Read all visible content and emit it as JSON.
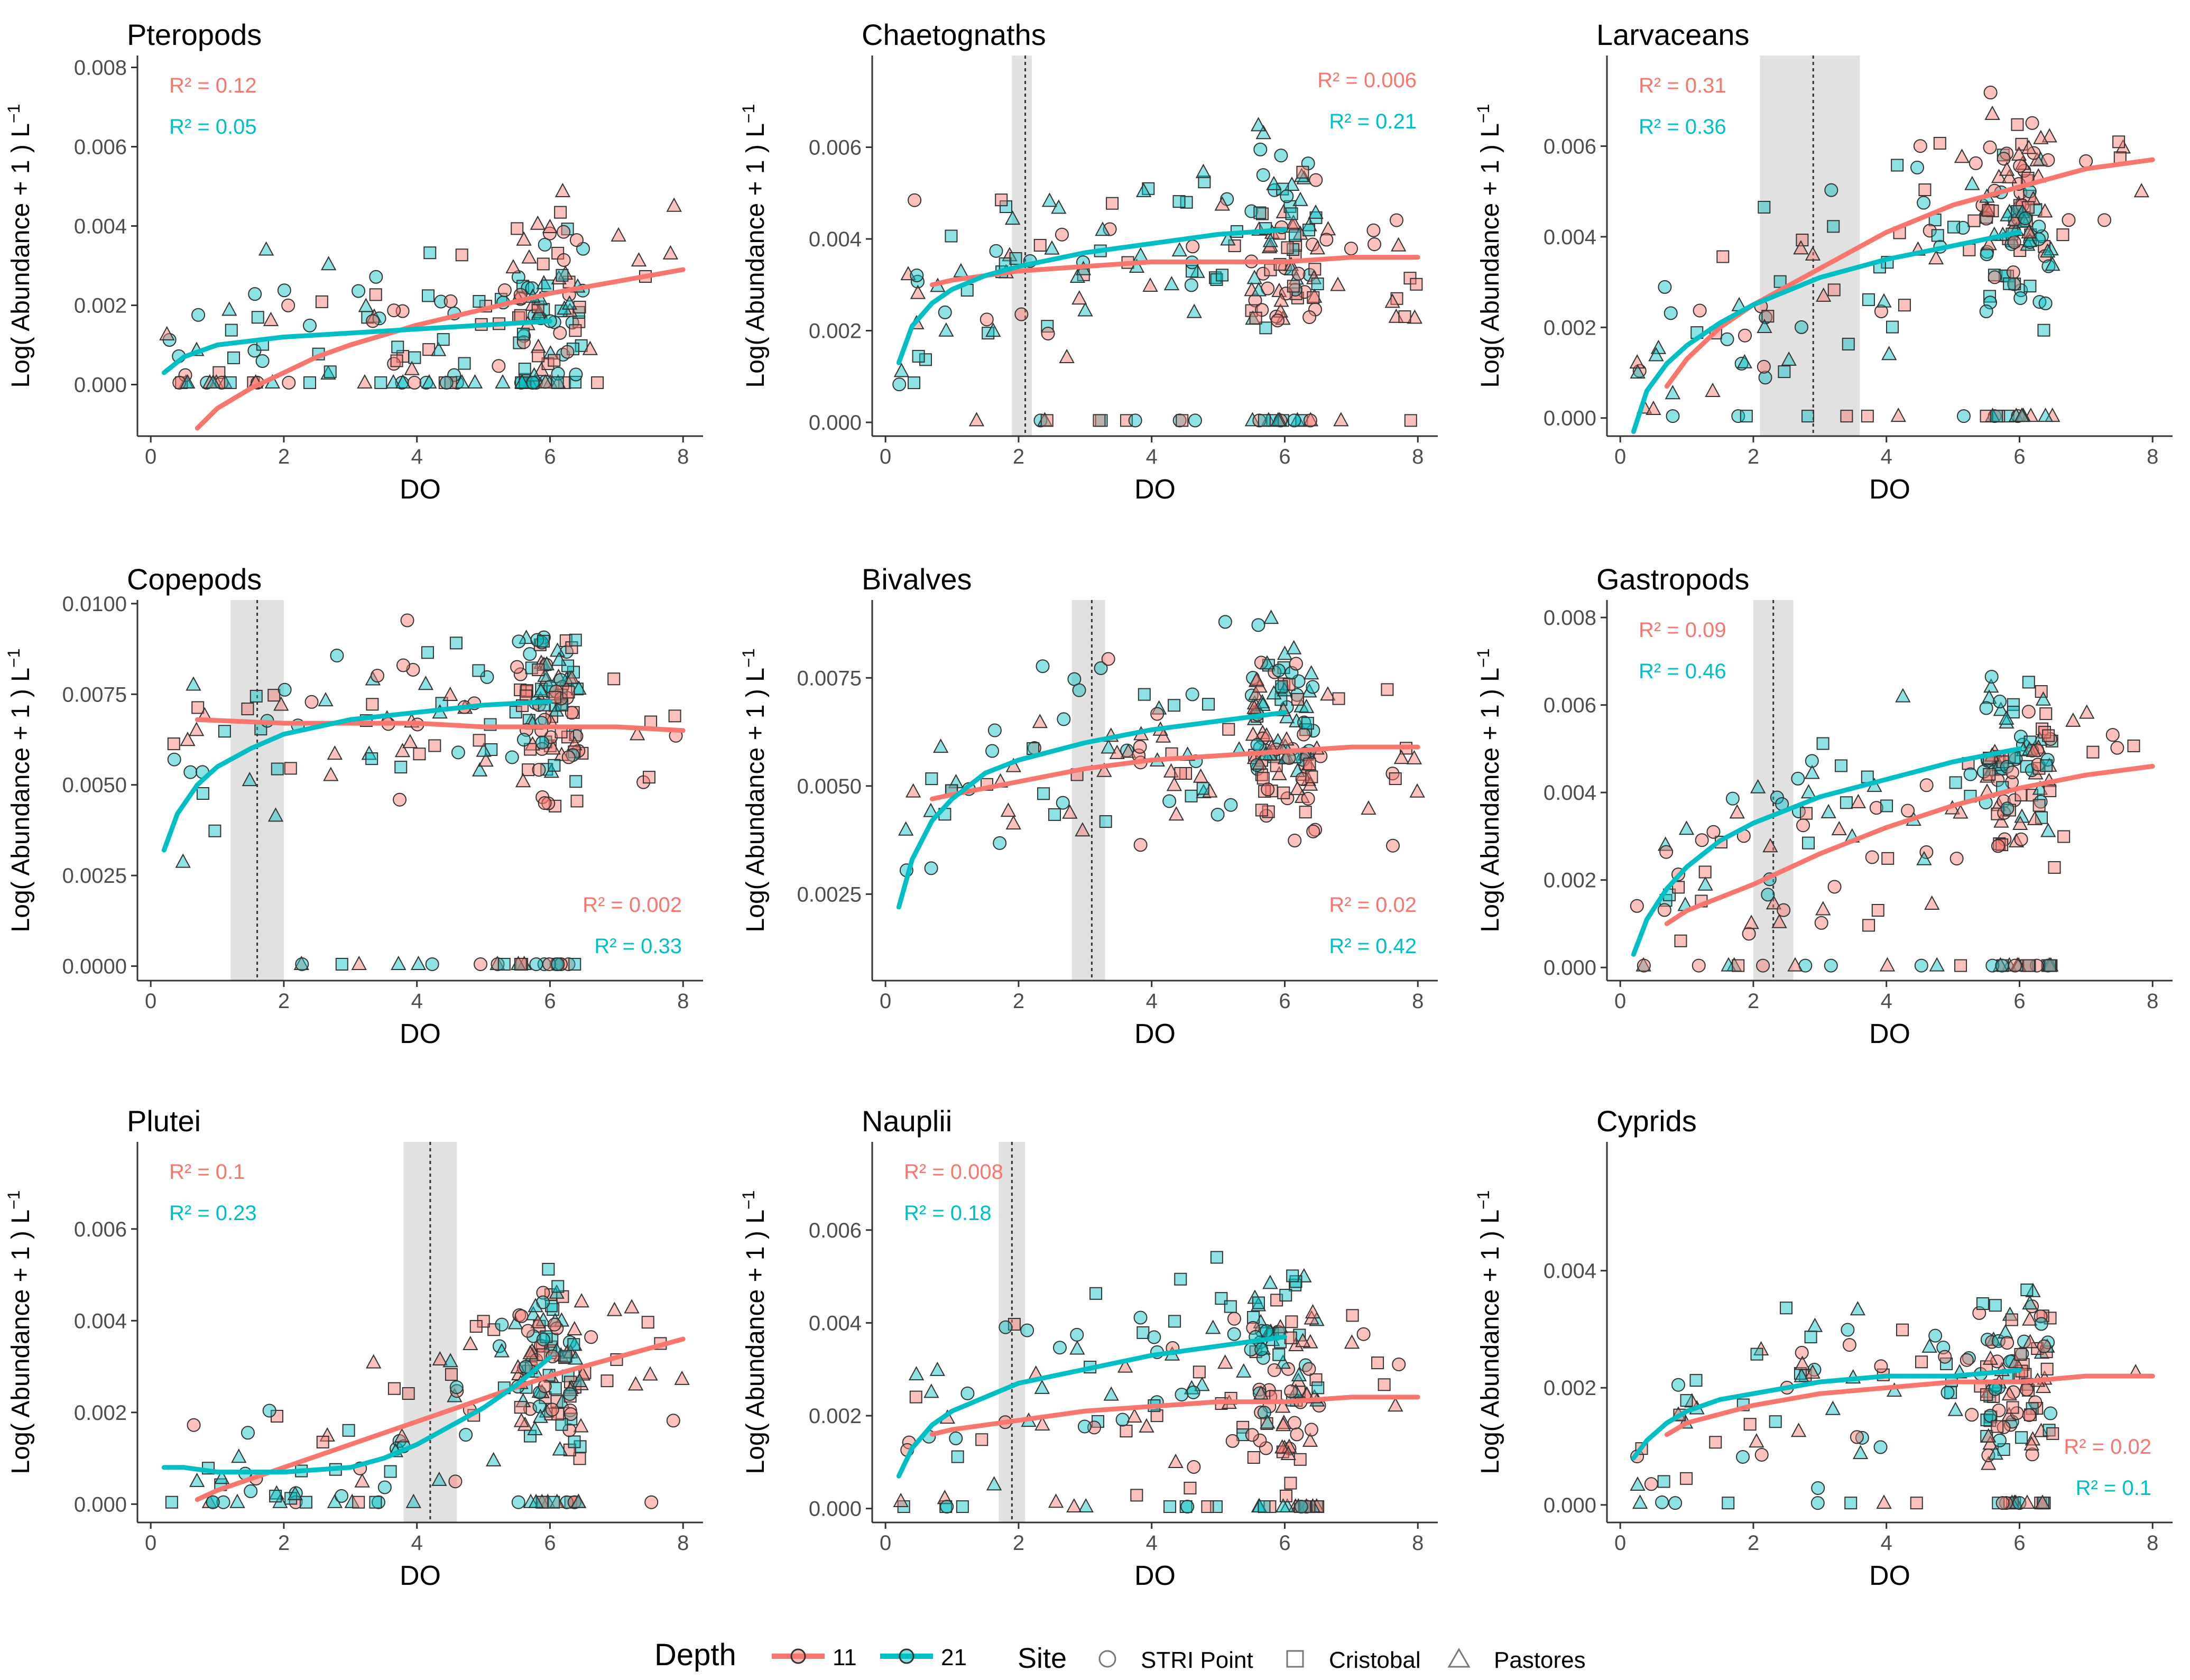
{
  "colors": {
    "depth_11": "#F8766D",
    "depth_21": "#00BFC4",
    "point_edge": "#333333",
    "shade": "#d9d9d9",
    "axis": "#333333",
    "text": "#000000"
  },
  "legend": {
    "depth_title": "Depth",
    "depth_items": [
      "11",
      "21"
    ],
    "site_title": "Site",
    "site_items": [
      "STRI Point",
      "Cristobal",
      "Pastores"
    ]
  },
  "chart_data": [
    {
      "type": "scatter",
      "title": "Pteropods",
      "xlabel": "DO",
      "ylabel": "Log( Abundance + 1 ) L",
      "xlim": [
        -0.2,
        8.3
      ],
      "ylim": [
        -0.0013,
        0.0083
      ],
      "xticks": [
        0,
        2,
        4,
        6,
        8
      ],
      "xtick_labels": [
        "0",
        "2",
        "4",
        "6",
        "8"
      ],
      "yticks": [
        0,
        0.002,
        0.004,
        0.006,
        0.008
      ],
      "ytick_labels": [
        "0.000",
        "0.002",
        "0.004",
        "0.006",
        "0.008"
      ],
      "r2": [
        {
          "label": "R² = 0.12",
          "pos": "top-left",
          "series": "11"
        },
        {
          "label": "R² = 0.05",
          "pos": "top-left",
          "series": "21"
        }
      ],
      "threshold": null,
      "shade": null,
      "fits": {
        "11": {
          "x": [
            0.7,
            1.0,
            1.5,
            2.0,
            2.5,
            3.0,
            4.0,
            5.0,
            6.0,
            7.0,
            8.0
          ],
          "y": [
            -0.0011,
            -0.0006,
            -0.0001,
            0.0003,
            0.0007,
            0.001,
            0.0015,
            0.0019,
            0.0023,
            0.0026,
            0.0029
          ]
        },
        "21": {
          "x": [
            0.2,
            0.5,
            1.0,
            1.5,
            2.0,
            3.0,
            4.0,
            5.0,
            6.0
          ],
          "y": [
            0.0003,
            0.0007,
            0.001,
            0.0011,
            0.0012,
            0.0013,
            0.0014,
            0.0015,
            0.0016
          ]
        }
      },
      "sample_count": 190,
      "outliers": []
    },
    {
      "type": "scatter",
      "title": "Chaetognaths",
      "xlabel": "DO",
      "ylabel": "Log( Abundance + 1 ) L",
      "xlim": [
        -0.2,
        8.3
      ],
      "ylim": [
        -0.0003,
        0.008
      ],
      "xticks": [
        0,
        2,
        4,
        6,
        8
      ],
      "xtick_labels": [
        "0",
        "2",
        "4",
        "6",
        "8"
      ],
      "yticks": [
        0,
        0.002,
        0.004,
        0.006
      ],
      "ytick_labels": [
        "0.000",
        "0.002",
        "0.004",
        "0.006"
      ],
      "r2": [
        {
          "label": "R² = 0.006",
          "pos": "top-right",
          "series": "11"
        },
        {
          "label": "R² = 0.21",
          "pos": "top-right",
          "series": "21"
        }
      ],
      "threshold": 2.1,
      "shade": [
        1.9,
        2.2
      ],
      "fits": {
        "11": {
          "x": [
            0.7,
            1.0,
            2.0,
            3.0,
            4.0,
            5.0,
            6.0,
            7.0,
            8.0
          ],
          "y": [
            0.003,
            0.0031,
            0.0033,
            0.0034,
            0.0035,
            0.0035,
            0.0035,
            0.0036,
            0.0036
          ]
        },
        "21": {
          "x": [
            0.2,
            0.4,
            0.7,
            1.0,
            1.5,
            2.0,
            3.0,
            4.0,
            5.0,
            6.0
          ],
          "y": [
            0.0013,
            0.0021,
            0.0026,
            0.0029,
            0.0032,
            0.0034,
            0.0037,
            0.0039,
            0.0041,
            0.0042
          ]
        }
      },
      "sample_count": 200,
      "outliers": []
    },
    {
      "type": "scatter",
      "title": "Larvaceans",
      "xlabel": "DO",
      "ylabel": "Log( Abundance + 1 ) L",
      "xlim": [
        -0.2,
        8.3
      ],
      "ylim": [
        -0.0004,
        0.008
      ],
      "xticks": [
        0,
        2,
        4,
        6,
        8
      ],
      "xtick_labels": [
        "0",
        "2",
        "4",
        "6",
        "8"
      ],
      "yticks": [
        0,
        0.002,
        0.004,
        0.006
      ],
      "ytick_labels": [
        "0.000",
        "0.002",
        "0.004",
        "0.006"
      ],
      "r2": [
        {
          "label": "R² = 0.31",
          "pos": "top-left",
          "series": "11"
        },
        {
          "label": "R² = 0.36",
          "pos": "top-left",
          "series": "21"
        }
      ],
      "threshold": 2.9,
      "shade": [
        2.1,
        3.6
      ],
      "fits": {
        "11": {
          "x": [
            0.7,
            1.0,
            1.5,
            2.0,
            3.0,
            4.0,
            5.0,
            6.0,
            7.0,
            8.0
          ],
          "y": [
            0.0007,
            0.0013,
            0.002,
            0.0025,
            0.0033,
            0.0041,
            0.0047,
            0.0051,
            0.0055,
            0.0057
          ]
        },
        "21": {
          "x": [
            0.2,
            0.4,
            0.7,
            1.0,
            1.5,
            2.0,
            3.0,
            4.0,
            5.0,
            6.0
          ],
          "y": [
            -0.0003,
            0.0006,
            0.0012,
            0.0016,
            0.0021,
            0.0025,
            0.0031,
            0.0035,
            0.0038,
            0.0041
          ]
        }
      },
      "sample_count": 200,
      "outliers": []
    },
    {
      "type": "scatter",
      "title": "Copepods",
      "xlabel": "DO",
      "ylabel": "Log( Abundance + 1 ) L",
      "xlim": [
        -0.2,
        8.3
      ],
      "ylim": [
        -0.0004,
        0.0101
      ],
      "xticks": [
        0,
        2,
        4,
        6,
        8
      ],
      "xtick_labels": [
        "0",
        "2",
        "4",
        "6",
        "8"
      ],
      "yticks": [
        0,
        0.0025,
        0.005,
        0.0075,
        0.01
      ],
      "ytick_labels": [
        "0.0000",
        "0.0025",
        "0.0050",
        "0.0075",
        "0.0100"
      ],
      "r2": [
        {
          "label": "R² = 0.002",
          "pos": "bottom-right",
          "series": "11"
        },
        {
          "label": "R² = 0.33",
          "pos": "bottom-right",
          "series": "21"
        }
      ],
      "threshold": 1.6,
      "shade": [
        1.2,
        2.0
      ],
      "fits": {
        "11": {
          "x": [
            0.7,
            2.0,
            3.0,
            4.0,
            5.0,
            6.0,
            7.0,
            8.0
          ],
          "y": [
            0.0068,
            0.0067,
            0.0067,
            0.0067,
            0.0066,
            0.0066,
            0.0066,
            0.0065
          ]
        },
        "21": {
          "x": [
            0.2,
            0.4,
            0.7,
            1.0,
            1.5,
            2.0,
            3.0,
            4.0,
            5.0,
            6.0
          ],
          "y": [
            0.0032,
            0.0042,
            0.005,
            0.0055,
            0.006,
            0.0064,
            0.0068,
            0.007,
            0.0072,
            0.0073
          ]
        }
      },
      "sample_count": 200,
      "outliers": []
    },
    {
      "type": "scatter",
      "title": "Bivalves",
      "xlabel": "DO",
      "ylabel": "Log( Abundance + 1 ) L",
      "xlim": [
        -0.2,
        8.3
      ],
      "ylim": [
        0.0005,
        0.0093
      ],
      "xticks": [
        0,
        2,
        4,
        6,
        8
      ],
      "xtick_labels": [
        "0",
        "2",
        "4",
        "6",
        "8"
      ],
      "yticks": [
        0.0025,
        0.005,
        0.0075
      ],
      "ytick_labels": [
        "0.0025",
        "0.0050",
        "0.0075"
      ],
      "r2": [
        {
          "label": "R² = 0.02",
          "pos": "bottom-right",
          "series": "11"
        },
        {
          "label": "R² = 0.42",
          "pos": "bottom-right",
          "series": "21"
        }
      ],
      "threshold": 3.1,
      "shade": [
        2.8,
        3.3
      ],
      "fits": {
        "11": {
          "x": [
            0.7,
            1.0,
            2.0,
            3.0,
            4.0,
            5.0,
            6.0,
            7.0,
            8.0
          ],
          "y": [
            0.0047,
            0.0048,
            0.0051,
            0.0054,
            0.0056,
            0.0057,
            0.0058,
            0.0059,
            0.0059
          ]
        },
        "21": {
          "x": [
            0.2,
            0.4,
            0.7,
            1.0,
            1.5,
            2.0,
            3.0,
            4.0,
            5.0,
            6.0
          ],
          "y": [
            0.0022,
            0.0033,
            0.0042,
            0.0047,
            0.0053,
            0.0056,
            0.006,
            0.0063,
            0.0065,
            0.0067
          ]
        }
      },
      "sample_count": 200,
      "outliers": []
    },
    {
      "type": "scatter",
      "title": "Gastropods",
      "xlabel": "DO",
      "ylabel": "Log( Abundance + 1 ) L",
      "xlim": [
        -0.2,
        8.3
      ],
      "ylim": [
        -0.0003,
        0.0084
      ],
      "xticks": [
        0,
        2,
        4,
        6,
        8
      ],
      "xtick_labels": [
        "0",
        "2",
        "4",
        "6",
        "8"
      ],
      "yticks": [
        0,
        0.002,
        0.004,
        0.006,
        0.008
      ],
      "ytick_labels": [
        "0.000",
        "0.002",
        "0.004",
        "0.006",
        "0.008"
      ],
      "r2": [
        {
          "label": "R² = 0.09",
          "pos": "top-left",
          "series": "11"
        },
        {
          "label": "R² = 0.46",
          "pos": "top-left",
          "series": "21"
        }
      ],
      "threshold": 2.3,
      "shade": [
        2.0,
        2.6
      ],
      "fits": {
        "11": {
          "x": [
            0.7,
            1.0,
            1.5,
            2.0,
            3.0,
            4.0,
            5.0,
            6.0,
            7.0,
            8.0
          ],
          "y": [
            0.001,
            0.0013,
            0.0016,
            0.0019,
            0.0026,
            0.0032,
            0.0037,
            0.0041,
            0.0044,
            0.0046
          ]
        },
        "21": {
          "x": [
            0.2,
            0.4,
            0.7,
            1.0,
            1.5,
            2.0,
            3.0,
            4.0,
            5.0,
            6.0
          ],
          "y": [
            0.0003,
            0.0011,
            0.0018,
            0.0023,
            0.0029,
            0.0033,
            0.0039,
            0.0043,
            0.0047,
            0.005
          ]
        }
      },
      "sample_count": 200,
      "outliers": []
    },
    {
      "type": "scatter",
      "title": "Plutei",
      "xlabel": "DO",
      "ylabel": "Log( Abundance + 1 ) L",
      "xlim": [
        -0.2,
        8.3
      ],
      "ylim": [
        -0.0004,
        0.0079
      ],
      "xticks": [
        0,
        2,
        4,
        6,
        8
      ],
      "xtick_labels": [
        "0",
        "2",
        "4",
        "6",
        "8"
      ],
      "yticks": [
        0,
        0.002,
        0.004,
        0.006
      ],
      "ytick_labels": [
        "0.000",
        "0.002",
        "0.004",
        "0.006"
      ],
      "r2": [
        {
          "label": "R² = 0.1",
          "pos": "top-left",
          "series": "11"
        },
        {
          "label": "R² = 0.23",
          "pos": "top-left",
          "series": "21"
        }
      ],
      "threshold": 4.2,
      "shade": [
        3.8,
        4.6
      ],
      "fits": {
        "11": {
          "x": [
            0.7,
            1.0,
            2.0,
            3.0,
            4.0,
            5.0,
            6.0,
            7.0,
            8.0
          ],
          "y": [
            0.0001,
            0.0003,
            0.0008,
            0.0013,
            0.0018,
            0.0023,
            0.0028,
            0.0032,
            0.0036
          ]
        },
        "21": {
          "x": [
            0.2,
            0.5,
            1.0,
            2.0,
            3.0,
            3.5,
            4.0,
            4.5,
            5.0,
            5.5,
            6.0
          ],
          "y": [
            0.0008,
            0.0008,
            0.0007,
            0.0007,
            0.0008,
            0.001,
            0.0013,
            0.0017,
            0.0021,
            0.0026,
            0.0032
          ]
        }
      },
      "sample_count": 200,
      "outliers": []
    },
    {
      "type": "scatter",
      "title": "Nauplii",
      "xlabel": "DO",
      "ylabel": "Log( Abundance + 1 ) L",
      "xlim": [
        -0.2,
        8.3
      ],
      "ylim": [
        -0.0003,
        0.0079
      ],
      "xticks": [
        0,
        2,
        4,
        6,
        8
      ],
      "xtick_labels": [
        "0",
        "2",
        "4",
        "6",
        "8"
      ],
      "yticks": [
        0,
        0.002,
        0.004,
        0.006
      ],
      "ytick_labels": [
        "0.000",
        "0.002",
        "0.004",
        "0.006"
      ],
      "r2": [
        {
          "label": "R² = 0.008",
          "pos": "top-left",
          "series": "11"
        },
        {
          "label": "R² = 0.18",
          "pos": "top-left",
          "series": "21"
        }
      ],
      "threshold": 1.9,
      "shade": [
        1.7,
        2.1
      ],
      "fits": {
        "11": {
          "x": [
            0.7,
            1.0,
            2.0,
            3.0,
            4.0,
            5.0,
            6.0,
            7.0,
            8.0
          ],
          "y": [
            0.0016,
            0.0017,
            0.0019,
            0.0021,
            0.0022,
            0.0023,
            0.0023,
            0.0024,
            0.0024
          ]
        },
        "21": {
          "x": [
            0.2,
            0.4,
            0.7,
            1.0,
            1.5,
            2.0,
            3.0,
            4.0,
            5.0,
            6.0
          ],
          "y": [
            0.0007,
            0.0013,
            0.0018,
            0.0021,
            0.0024,
            0.0027,
            0.003,
            0.0033,
            0.0035,
            0.0037
          ]
        }
      },
      "sample_count": 200,
      "outliers": []
    },
    {
      "type": "scatter",
      "title": "Cyprids",
      "xlabel": "DO",
      "ylabel": "Log( Abundance + 1 ) L",
      "xlim": [
        -0.2,
        8.3
      ],
      "ylim": [
        -0.0003,
        0.0062
      ],
      "xticks": [
        0,
        2,
        4,
        6,
        8
      ],
      "xtick_labels": [
        "0",
        "2",
        "4",
        "6",
        "8"
      ],
      "yticks": [
        0,
        0.002,
        0.004
      ],
      "ytick_labels": [
        "0.000",
        "0.002",
        "0.004"
      ],
      "r2": [
        {
          "label": "R² = 0.02",
          "pos": "bottom-right",
          "series": "11"
        },
        {
          "label": "R² = 0.1",
          "pos": "bottom-right",
          "series": "21"
        }
      ],
      "threshold": null,
      "shade": null,
      "fits": {
        "11": {
          "x": [
            0.7,
            1.0,
            2.0,
            3.0,
            4.0,
            5.0,
            6.0,
            7.0,
            8.0
          ],
          "y": [
            0.0012,
            0.0014,
            0.0017,
            0.0019,
            0.002,
            0.0021,
            0.0021,
            0.0022,
            0.0022
          ]
        },
        "21": {
          "x": [
            0.2,
            0.4,
            0.7,
            1.0,
            1.5,
            2.0,
            3.0,
            4.0,
            5.0,
            6.0
          ],
          "y": [
            0.0008,
            0.0011,
            0.0014,
            0.0016,
            0.0018,
            0.0019,
            0.0021,
            0.0022,
            0.0022,
            0.0023
          ]
        }
      },
      "sample_count": 180,
      "outliers": []
    }
  ]
}
